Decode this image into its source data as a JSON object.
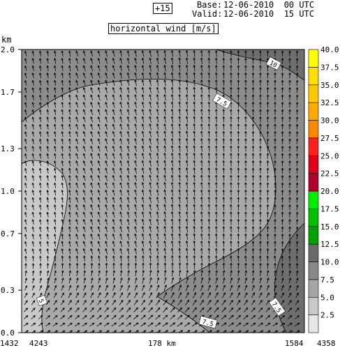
{
  "header": {
    "forecast_step": "+15",
    "base_label": "Base:",
    "base_value": "12-06-2010  00 UTC",
    "valid_label": "Valid:",
    "valid_value": "12-06-2010  15 UTC"
  },
  "chart_data": {
    "type": "heatmap",
    "title": "horizontal wind [m/s]",
    "ylabel": "km",
    "ylim": [
      0.0,
      2.0
    ],
    "yticks": [
      "0.0",
      "0.3",
      "0.7",
      "1.0",
      "1.3",
      "1.7",
      "2.0"
    ],
    "x_left_labels": [
      "1432",
      "4243"
    ],
    "x_center_label": "178 km",
    "x_right_labels": [
      "1584",
      "4358"
    ],
    "contour_labels": [
      "10",
      "7.5",
      "5",
      "7.5",
      "7.5"
    ],
    "legend": {
      "levels": [
        "2.5",
        "5.0",
        "7.5",
        "10.0",
        "12.5",
        "15.0",
        "17.5",
        "20.0",
        "22.5",
        "25.0",
        "27.5",
        "30.0",
        "32.5",
        "35.0",
        "37.5",
        "40.0"
      ],
      "colors": [
        "#e6e6e6",
        "#c8c8c8",
        "#a6a6a6",
        "#888888",
        "#6a6a6a",
        "#00a000",
        "#00c000",
        "#00ee00",
        "#b00030",
        "#e00018",
        "#ff2020",
        "#ff8800",
        "#ffaa00",
        "#ffc800",
        "#ffe000",
        "#ffff00"
      ]
    }
  }
}
